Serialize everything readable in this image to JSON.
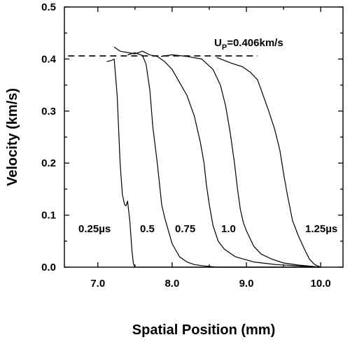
{
  "chart_data": {
    "type": "line",
    "xlabel": "Spatial Position (mm)",
    "ylabel": "Velocity (km/s)",
    "xlim": [
      6.55,
      10.3
    ],
    "ylim": [
      0,
      0.5
    ],
    "xticks": [
      "7.0",
      "8.0",
      "9.0",
      "10.0"
    ],
    "xtick_values": [
      7.0,
      8.0,
      9.0,
      10.0
    ],
    "yticks": [
      "0.0",
      "0.1",
      "0.2",
      "0.3",
      "0.4",
      "0.5"
    ],
    "ytick_values": [
      0.0,
      0.1,
      0.2,
      0.3,
      0.4,
      0.5
    ],
    "grid": false,
    "reference_line": {
      "label_main": "U",
      "label_sub": "P",
      "label_rest": "=0.406km/s",
      "value": 0.406,
      "x_range": [
        6.6,
        9.15
      ]
    },
    "annotations": [
      "0.25µs",
      "0.5",
      "0.75",
      "1.0",
      "1.25µs"
    ],
    "series": [
      {
        "name": "0.25µs",
        "x": [
          7.12,
          7.18,
          7.22,
          7.26,
          7.3,
          7.33,
          7.36,
          7.38,
          7.4,
          7.43,
          7.46,
          7.48,
          7.5,
          7.55,
          7.62,
          7.75,
          8.0,
          9.0,
          10.0
        ],
        "y": [
          0.395,
          0.397,
          0.4,
          0.33,
          0.2,
          0.14,
          0.12,
          0.118,
          0.127,
          0.09,
          0.03,
          0.006,
          0.0,
          0.0,
          0.0,
          0.0,
          0.0,
          0.0,
          0.0
        ]
      },
      {
        "name": "0.5",
        "x": [
          7.4,
          7.5,
          7.6,
          7.65,
          7.7,
          7.74,
          7.8,
          7.86,
          7.9,
          7.95,
          8.0,
          8.1,
          8.2,
          8.3,
          8.4,
          8.6,
          9.0,
          10.0
        ],
        "y": [
          0.408,
          0.412,
          0.407,
          0.39,
          0.34,
          0.27,
          0.2,
          0.12,
          0.095,
          0.07,
          0.045,
          0.02,
          0.01,
          0.005,
          0.003,
          0.0,
          0.0,
          0.0
        ]
      },
      {
        "name": "0.75",
        "x": [
          7.5,
          7.6,
          7.7,
          7.8,
          7.9,
          8.0,
          8.1,
          8.2,
          8.3,
          8.38,
          8.43,
          8.46,
          8.5,
          8.55,
          8.62,
          8.7,
          8.85,
          9.1,
          9.4,
          10.0
        ],
        "y": [
          0.41,
          0.415,
          0.408,
          0.405,
          0.395,
          0.38,
          0.355,
          0.33,
          0.29,
          0.24,
          0.2,
          0.16,
          0.12,
          0.08,
          0.05,
          0.035,
          0.02,
          0.01,
          0.005,
          0.0
        ],
        "extra_points": [
          [
            7.22,
            0.423
          ],
          [
            7.3,
            0.415
          ]
        ]
      },
      {
        "name": "1.0",
        "x": [
          7.85,
          8.0,
          8.2,
          8.4,
          8.55,
          8.65,
          8.72,
          8.78,
          8.84,
          8.88,
          8.92,
          8.96,
          9.0,
          9.05,
          9.1,
          9.2,
          9.35,
          9.5,
          9.7,
          10.0
        ],
        "y": [
          0.405,
          0.408,
          0.405,
          0.4,
          0.38,
          0.35,
          0.31,
          0.26,
          0.2,
          0.15,
          0.11,
          0.085,
          0.07,
          0.055,
          0.04,
          0.025,
          0.015,
          0.008,
          0.004,
          0.0
        ]
      },
      {
        "name": "1.25µs",
        "x": [
          8.6,
          8.8,
          8.95,
          9.05,
          9.15,
          9.2,
          9.3,
          9.38,
          9.45,
          9.5,
          9.55,
          9.62,
          9.7,
          9.78,
          9.85,
          9.92,
          10.0
        ],
        "y": [
          0.403,
          0.392,
          0.385,
          0.375,
          0.36,
          0.34,
          0.3,
          0.265,
          0.225,
          0.18,
          0.14,
          0.09,
          0.06,
          0.035,
          0.015,
          0.005,
          0.0
        ]
      }
    ]
  }
}
